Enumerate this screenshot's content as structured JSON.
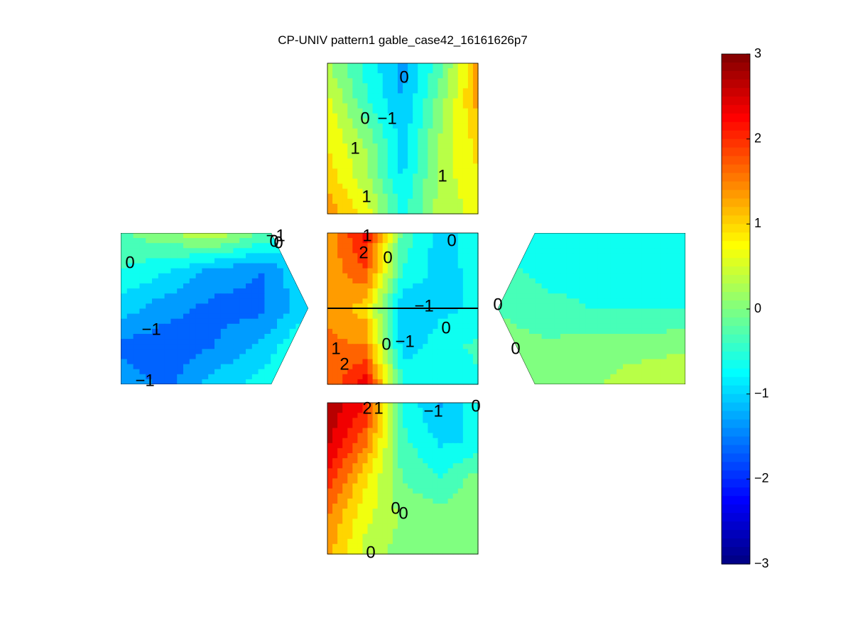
{
  "chart_data": {
    "type": "heatmap",
    "title": "CP-UNIV pattern1 gable_case42_16161626p7",
    "colormap": "jet",
    "clim": [
      -3,
      3
    ],
    "colorbar_ticks": [
      "3",
      "2",
      "1",
      "0",
      "−1",
      "−2",
      "−3"
    ],
    "panels": [
      {
        "name": "top",
        "grid_x": [
          0,
          0.25,
          0.5,
          0.75,
          1
        ],
        "grid_y": [
          0,
          0.25,
          0.5,
          0.75,
          1
        ],
        "values": [
          [
            0.2,
            -0.6,
            -1.3,
            -0.3,
            1.3
          ],
          [
            0.6,
            -0.4,
            -1.2,
            0.0,
            1.3
          ],
          [
            0.8,
            0.1,
            -1.0,
            0.2,
            1.0
          ],
          [
            1.0,
            0.3,
            -0.9,
            0.3,
            0.8
          ],
          [
            1.4,
            0.7,
            -0.6,
            0.3,
            0.6
          ]
        ],
        "labels": [
          "0",
          "0",
          "−1",
          "1",
          "1",
          "1"
        ]
      },
      {
        "name": "roof",
        "grid_x": [
          0,
          0.25,
          0.5,
          0.75,
          1
        ],
        "grid_y": [
          0,
          0.25,
          0.5,
          0.75,
          1
        ],
        "values": [
          [
            1.2,
            2.3,
            -0.3,
            -1.0,
            -0.6
          ],
          [
            1.3,
            1.8,
            -0.5,
            -1.0,
            -0.7
          ],
          [
            1.4,
            1.0,
            -1.2,
            -0.9,
            -0.8
          ],
          [
            1.6,
            1.5,
            -1.0,
            -0.7,
            -0.4
          ],
          [
            1.5,
            2.4,
            -0.5,
            -0.8,
            -0.6
          ]
        ],
        "labels": [
          "1",
          "2",
          "0",
          "0",
          "−1",
          "0",
          "0",
          "−1",
          "1",
          "2"
        ]
      },
      {
        "name": "bottom",
        "grid_x": [
          0,
          0.25,
          0.5,
          0.75,
          1
        ],
        "grid_y": [
          0,
          0.25,
          0.5,
          0.75,
          1
        ],
        "values": [
          [
            2.8,
            2.2,
            -0.6,
            -1.2,
            -0.6
          ],
          [
            2.6,
            1.6,
            -0.4,
            -0.9,
            -0.8
          ],
          [
            2.1,
            0.9,
            -0.2,
            -0.5,
            0.0
          ],
          [
            1.5,
            0.6,
            0.1,
            0.0,
            0.0
          ],
          [
            1.3,
            0.4,
            0.0,
            0.0,
            0.0
          ]
        ],
        "labels": [
          "2",
          "1",
          "−1",
          "0",
          "0",
          "0",
          "0"
        ]
      },
      {
        "name": "left",
        "grid_x": [
          0,
          0.25,
          0.5,
          0.75,
          1
        ],
        "grid_y": [
          0,
          0.25,
          0.5,
          0.75,
          1
        ],
        "values": [
          [
            -0.2,
            0.1,
            0.5,
            -0.2,
            -0.6
          ],
          [
            -0.5,
            -0.8,
            -1.3,
            -1.5,
            -0.8
          ],
          [
            -1.0,
            -1.4,
            -1.6,
            -1.6,
            -0.9
          ],
          [
            -1.6,
            -1.7,
            -1.5,
            -1.1,
            -0.4
          ],
          [
            -1.3,
            -1.6,
            -1.0,
            -0.7,
            -0.1
          ]
        ],
        "labels": [
          "0",
          "−1",
          "−1",
          "−1",
          "0",
          "0"
        ]
      },
      {
        "name": "right",
        "grid_x": [
          0,
          0.25,
          0.5,
          0.75,
          1
        ],
        "grid_y": [
          0,
          0.25,
          0.5,
          0.75,
          1
        ],
        "values": [
          [
            -0.5,
            -0.6,
            -0.6,
            -0.6,
            -0.6
          ],
          [
            -0.4,
            -0.6,
            -0.6,
            -0.6,
            -0.6
          ],
          [
            -0.2,
            -0.4,
            -0.5,
            -0.5,
            -0.5
          ],
          [
            0.0,
            -0.1,
            0.0,
            0.0,
            0.1
          ],
          [
            0.0,
            0.0,
            0.1,
            0.4,
            0.5
          ]
        ],
        "labels": [
          "0",
          "0"
        ]
      }
    ]
  }
}
